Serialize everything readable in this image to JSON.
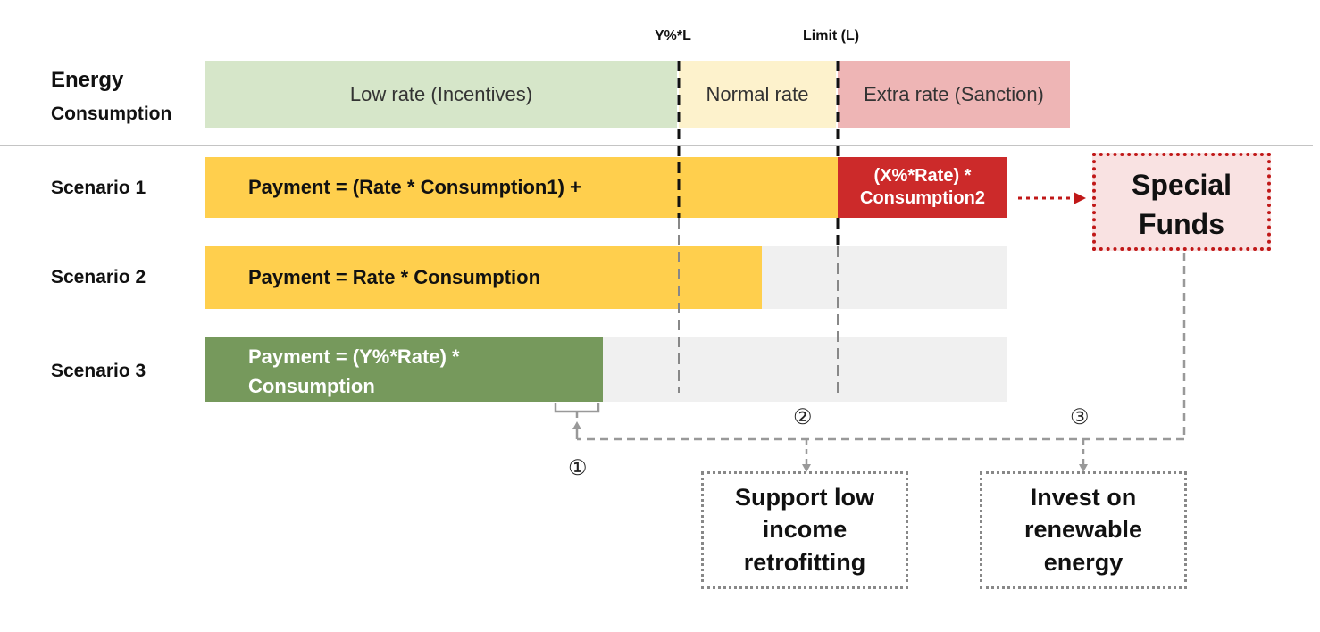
{
  "header": {
    "marker_y": "Y%*L",
    "marker_limit": "Limit (L)",
    "row_label_line1": "Energy",
    "row_label_line2": "Consumption"
  },
  "bands": {
    "low": "Low rate (Incentives)",
    "normal": "Normal rate",
    "extra": "Extra rate (Sanction)"
  },
  "scenarios": [
    {
      "label": "Scenario 1",
      "formula": "Payment = (Rate * Consumption1)  +",
      "sanction_line1": "(X%*Rate)  *",
      "sanction_line2": "Consumption2"
    },
    {
      "label": "Scenario 2",
      "formula": "Payment = Rate * Consumption"
    },
    {
      "label": "Scenario 3",
      "formula_line1": "Payment = (Y%*Rate) *",
      "formula_line2": "Consumption"
    }
  ],
  "special_funds": {
    "line1": "Special",
    "line2": "Funds"
  },
  "uses": {
    "num1": "①",
    "num2": "②",
    "num3": "③",
    "retrofit_line1": "Support low",
    "retrofit_line2": "income",
    "retrofit_line3": "retrofitting",
    "renewable_line1": "Invest on",
    "renewable_line2": "renewable",
    "renewable_line3": "energy"
  },
  "colors": {
    "low_band": "#d6e6c9",
    "normal_band": "#fdf2cc",
    "extra_band": "#eeb5b5",
    "payment_yellow": "#ffcf4d",
    "sanction_red": "#cc2a2a",
    "incentive_green": "#76995c",
    "track_grey": "#f0f0f0",
    "funds_bg": "#f9e2e2",
    "funds_border": "#c01818"
  }
}
